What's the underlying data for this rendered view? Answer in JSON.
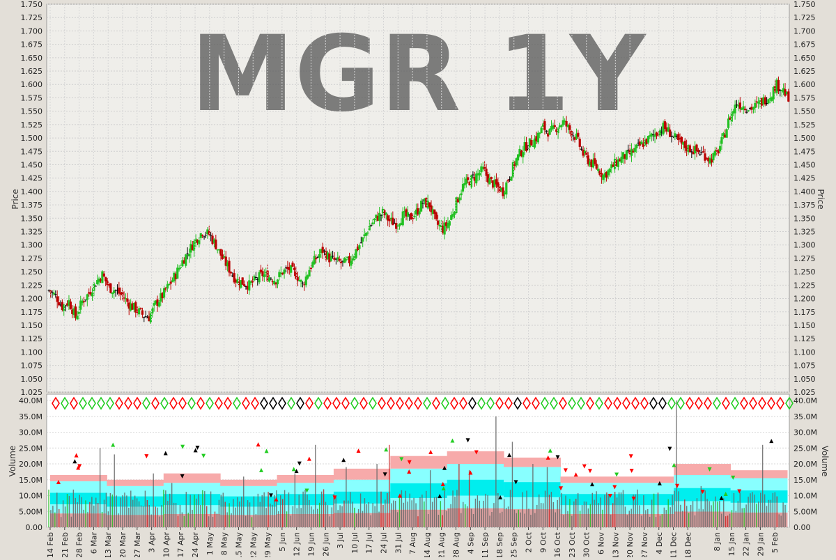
{
  "chart_data": [
    {
      "type": "ohlc",
      "title": "MGR 1Y",
      "ylabel": "Price",
      "ylim": [
        1.025,
        1.75
      ],
      "y_ticks": [
        "1.025",
        "1.050",
        "1.075",
        "1.100",
        "1.125",
        "1.150",
        "1.175",
        "1.200",
        "1.225",
        "1.250",
        "1.275",
        "1.300",
        "1.325",
        "1.350",
        "1.375",
        "1.400",
        "1.425",
        "1.450",
        "1.475",
        "1.500",
        "1.525",
        "1.550",
        "1.575",
        "1.600",
        "1.625",
        "1.650",
        "1.675",
        "1.700",
        "1.725",
        "1.750"
      ],
      "grid": true,
      "bar_colors": {
        "up": "#22c022",
        "down": "#bb0000",
        "neutral": "#000000"
      },
      "close_anchors": [
        [
          0,
          1.215
        ],
        [
          4,
          1.205
        ],
        [
          8,
          1.185
        ],
        [
          12,
          1.195
        ],
        [
          16,
          1.165
        ],
        [
          20,
          1.195
        ],
        [
          24,
          1.21
        ],
        [
          28,
          1.23
        ],
        [
          32,
          1.245
        ],
        [
          36,
          1.22
        ],
        [
          40,
          1.215
        ],
        [
          44,
          1.205
        ],
        [
          48,
          1.19
        ],
        [
          52,
          1.18
        ],
        [
          56,
          1.17
        ],
        [
          60,
          1.165
        ],
        [
          64,
          1.19
        ],
        [
          68,
          1.205
        ],
        [
          72,
          1.225
        ],
        [
          76,
          1.245
        ],
        [
          80,
          1.27
        ],
        [
          84,
          1.29
        ],
        [
          88,
          1.31
        ],
        [
          92,
          1.325
        ],
        [
          96,
          1.32
        ],
        [
          100,
          1.3
        ],
        [
          104,
          1.275
        ],
        [
          108,
          1.255
        ],
        [
          112,
          1.235
        ],
        [
          116,
          1.23
        ],
        [
          120,
          1.225
        ],
        [
          124,
          1.235
        ],
        [
          128,
          1.245
        ],
        [
          132,
          1.24
        ],
        [
          136,
          1.235
        ],
        [
          140,
          1.25
        ],
        [
          144,
          1.255
        ],
        [
          148,
          1.245
        ],
        [
          152,
          1.225
        ],
        [
          156,
          1.255
        ],
        [
          160,
          1.275
        ],
        [
          164,
          1.29
        ],
        [
          168,
          1.275
        ],
        [
          172,
          1.27
        ],
        [
          176,
          1.265
        ],
        [
          180,
          1.27
        ],
        [
          184,
          1.29
        ],
        [
          188,
          1.31
        ],
        [
          192,
          1.335
        ],
        [
          196,
          1.35
        ],
        [
          200,
          1.36
        ],
        [
          204,
          1.345
        ],
        [
          208,
          1.34
        ],
        [
          212,
          1.355
        ],
        [
          216,
          1.35
        ],
        [
          220,
          1.36
        ],
        [
          224,
          1.38
        ],
        [
          228,
          1.375
        ],
        [
          232,
          1.34
        ],
        [
          236,
          1.33
        ],
        [
          240,
          1.345
        ],
        [
          244,
          1.38
        ],
        [
          248,
          1.41
        ],
        [
          252,
          1.42
        ],
        [
          256,
          1.43
        ],
        [
          260,
          1.44
        ],
        [
          264,
          1.42
        ],
        [
          268,
          1.41
        ],
        [
          272,
          1.4
        ],
        [
          276,
          1.43
        ],
        [
          280,
          1.46
        ],
        [
          284,
          1.48
        ],
        [
          288,
          1.49
        ],
        [
          292,
          1.5
        ],
        [
          296,
          1.52
        ],
        [
          300,
          1.51
        ],
        [
          304,
          1.52
        ],
        [
          308,
          1.53
        ],
        [
          312,
          1.515
        ],
        [
          316,
          1.5
        ],
        [
          320,
          1.47
        ],
        [
          324,
          1.455
        ],
        [
          328,
          1.445
        ],
        [
          332,
          1.43
        ],
        [
          336,
          1.44
        ],
        [
          340,
          1.455
        ],
        [
          344,
          1.465
        ],
        [
          348,
          1.47
        ],
        [
          352,
          1.48
        ],
        [
          356,
          1.49
        ],
        [
          360,
          1.5
        ],
        [
          364,
          1.51
        ],
        [
          368,
          1.52
        ],
        [
          372,
          1.51
        ],
        [
          376,
          1.495
        ],
        [
          380,
          1.485
        ],
        [
          384,
          1.48
        ],
        [
          388,
          1.475
        ],
        [
          392,
          1.47
        ],
        [
          396,
          1.46
        ],
        [
          400,
          1.47
        ],
        [
          404,
          1.5
        ],
        [
          408,
          1.54
        ],
        [
          412,
          1.565
        ],
        [
          416,
          1.56
        ],
        [
          420,
          1.555
        ],
        [
          424,
          1.56
        ],
        [
          428,
          1.57
        ],
        [
          432,
          1.58
        ],
        [
          436,
          1.6
        ],
        [
          440,
          1.59
        ],
        [
          443,
          1.57
        ]
      ],
      "bar_count": 444
    },
    {
      "type": "bar",
      "ylabel": "Volume",
      "ylim": [
        0,
        42000000
      ],
      "y_ticks": [
        "0.00",
        "5.00M",
        "10.0M",
        "15.0M",
        "20.0M",
        "25.0M",
        "30.0M",
        "35.0M",
        "40.0M"
      ],
      "grid": true,
      "x_ticks": [
        "14 Feb",
        "21 Feb",
        "28 Feb",
        "6 Mar",
        "13 Mar",
        "20 Mar",
        "27 Mar",
        "3 Apr",
        "10 Apr",
        "17 Apr",
        "24 Apr",
        "1 May",
        "8 May",
        "15 May",
        "22 May",
        "29 May",
        "5 Jun",
        "12 Jun",
        "19 Jun",
        "26 Jun",
        "3 Jul",
        "10 Jul",
        "17 Jul",
        "24 Jul",
        "31 Jul",
        "7 Aug",
        "14 Aug",
        "21 Aug",
        "28 Aug",
        "4 Sep",
        "11 Sep",
        "18 Sep",
        "25 Sep",
        "2 Oct",
        "9 Oct",
        "16 Oct",
        "23 Oct",
        "30 Oct",
        "6 Nov",
        "13 Nov",
        "20 Nov",
        "27 Nov",
        "4 Dec",
        "11 Dec",
        "18 Dec",
        "8 Jan",
        "15 Jan",
        "22 Jan",
        "29 Jan",
        "5 Feb"
      ],
      "x_tick_positions": [
        0,
        7,
        14,
        21,
        28,
        35,
        42,
        49,
        56,
        63,
        70,
        77,
        84,
        91,
        98,
        105,
        112,
        119,
        126,
        133,
        140,
        147,
        154,
        161,
        168,
        175,
        182,
        189,
        196,
        203,
        210,
        217,
        224,
        231,
        238,
        245,
        252,
        259,
        266,
        273,
        280,
        287,
        294,
        301,
        308,
        322,
        329,
        336,
        343,
        350
      ],
      "volume_baseline": 8000000,
      "volume_spikes": [
        [
          25,
          25000000
        ],
        [
          32,
          23000000
        ],
        [
          51,
          17000000
        ],
        [
          60,
          14000000
        ],
        [
          95,
          16000000
        ],
        [
          120,
          17000000
        ],
        [
          130,
          26000000
        ],
        [
          145,
          19000000
        ],
        [
          160,
          20000000
        ],
        [
          166,
          26000000
        ],
        [
          186,
          18000000
        ],
        [
          200,
          20000000
        ],
        [
          205,
          18000000
        ],
        [
          218,
          35000000
        ],
        [
          226,
          27000000
        ],
        [
          236,
          20000000
        ],
        [
          243,
          19000000
        ],
        [
          306,
          40000000
        ],
        [
          318,
          13000000
        ],
        [
          348,
          26000000
        ]
      ],
      "band_levels": {
        "pink_top": [
          16500000,
          15000000,
          17000000,
          15000000,
          16500000,
          18500000,
          22500000,
          24000000,
          22000000,
          16000000,
          16000000,
          20000000,
          18000000
        ],
        "cyan_top": [
          14500000,
          13000000,
          14000000,
          13000000,
          14000000,
          15000000,
          18500000,
          20000000,
          19000000,
          14000000,
          14000000,
          16500000,
          15500000
        ]
      },
      "band_colors": {
        "pink": "#f7aaaa",
        "cyan": "#88ffff",
        "cyan_core": "#00eeee",
        "base": "#dba0a0"
      }
    }
  ],
  "marker_row": {
    "colors": [
      "#ff0000",
      "#22cc22",
      "#000000"
    ]
  }
}
